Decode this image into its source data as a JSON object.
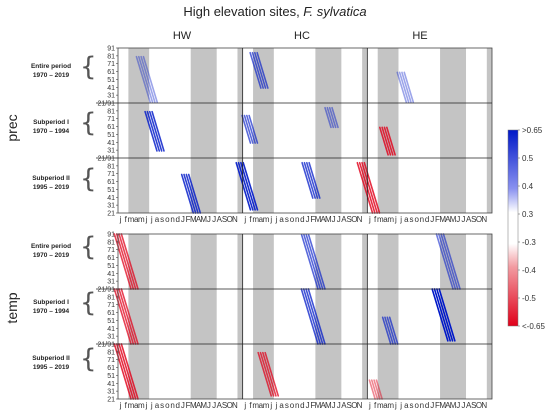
{
  "chart_data": {
    "type": "heatmap",
    "title_main": "High elevation sites, ",
    "title_species": "F. sylvatica",
    "groups": [
      "HW",
      "HC",
      "HE"
    ],
    "variables": [
      "prec",
      "temp"
    ],
    "periods": [
      {
        "name": "Entire period",
        "years": "1970 – 2019"
      },
      {
        "name": "Subperiod I",
        "years": "1970 – 1994"
      },
      {
        "name": "Subperiod II",
        "years": "1995 – 2019"
      }
    ],
    "y_ticks": [
      "91",
      "81",
      "71",
      "61",
      "51",
      "41",
      "31",
      "21"
    ],
    "y_break_labels": [
      "21/91",
      "21/91"
    ],
    "month_axis": [
      "j",
      "f",
      "m",
      "a",
      "m",
      "j",
      "j",
      "a",
      "s",
      "o",
      "n",
      "d",
      "J",
      "F",
      "M",
      "A",
      "M",
      "J",
      "J",
      "A",
      "S",
      "O",
      "N"
    ],
    "colorbar": {
      "labels": [
        ">0.65",
        "0.5",
        "0.4",
        "0.3",
        "-0.3",
        "-0.4",
        "-0.5",
        "<-0.65"
      ],
      "values": [
        0.65,
        0.5,
        0.4,
        0.3,
        -0.3,
        -0.4,
        -0.5,
        -0.65
      ],
      "positive_color": "#0018c8",
      "negative_color": "#e0001a"
    },
    "shading_color": "#c4c4c4",
    "shaded_months_per_group": [
      {
        "from_month": 2,
        "to_month": 5
      },
      {
        "from_month": 14,
        "to_month": 18
      },
      {
        "from_month": 23,
        "to_month": 23
      }
    ],
    "features": [
      {
        "var": 0,
        "period": 0,
        "group": 0,
        "month": 6.2,
        "window_start": 22,
        "window_end": 80,
        "corr": 0.3
      },
      {
        "var": 0,
        "period": 0,
        "group": 1,
        "month": 3.5,
        "window_start": 40,
        "window_end": 85,
        "corr": 0.45
      },
      {
        "var": 0,
        "period": 0,
        "group": 2,
        "month": 7.5,
        "window_start": 22,
        "window_end": 60,
        "corr": 0.3
      },
      {
        "var": 0,
        "period": 1,
        "group": 0,
        "month": 7.5,
        "window_start": 30,
        "window_end": 80,
        "corr": 0.55
      },
      {
        "var": 0,
        "period": 1,
        "group": 1,
        "month": 1.5,
        "window_start": 40,
        "window_end": 75,
        "corr": 0.45
      },
      {
        "var": 0,
        "period": 1,
        "group": 1,
        "month": 17.0,
        "window_start": 60,
        "window_end": 85,
        "corr": 0.35
      },
      {
        "var": 0,
        "period": 1,
        "group": 2,
        "month": 4.0,
        "window_start": 25,
        "window_end": 60,
        "corr": -0.55
      },
      {
        "var": 0,
        "period": 2,
        "group": 0,
        "month": 14.5,
        "window_start": 21,
        "window_end": 70,
        "corr": 0.55
      },
      {
        "var": 0,
        "period": 2,
        "group": 1,
        "month": 1.5,
        "window_start": 25,
        "window_end": 85,
        "corr": 0.6
      },
      {
        "var": 0,
        "period": 2,
        "group": 1,
        "month": 13.5,
        "window_start": 40,
        "window_end": 85,
        "corr": 0.5
      },
      {
        "var": 0,
        "period": 2,
        "group": 2,
        "month": 1.0,
        "window_start": 21,
        "window_end": 85,
        "corr": -0.55
      },
      {
        "var": 1,
        "period": 0,
        "group": 0,
        "month": 2.5,
        "window_start": 21,
        "window_end": 91,
        "corr": -0.5
      },
      {
        "var": 1,
        "period": 0,
        "group": 1,
        "month": 14.5,
        "window_start": 21,
        "window_end": 90,
        "corr": 0.45
      },
      {
        "var": 1,
        "period": 0,
        "group": 2,
        "month": 16.5,
        "window_start": 21,
        "window_end": 91,
        "corr": 0.4
      },
      {
        "var": 1,
        "period": 1,
        "group": 0,
        "month": 2.5,
        "window_start": 21,
        "window_end": 91,
        "corr": -0.5
      },
      {
        "var": 1,
        "period": 1,
        "group": 1,
        "month": 14.5,
        "window_start": 21,
        "window_end": 91,
        "corr": 0.5
      },
      {
        "var": 1,
        "period": 1,
        "group": 2,
        "month": 15.5,
        "window_start": 25,
        "window_end": 91,
        "corr": 0.65
      },
      {
        "var": 1,
        "period": 1,
        "group": 2,
        "month": 4.5,
        "window_start": 21,
        "window_end": 55,
        "corr": 0.45
      },
      {
        "var": 1,
        "period": 2,
        "group": 0,
        "month": 2.5,
        "window_start": 21,
        "window_end": 91,
        "corr": -0.55
      },
      {
        "var": 1,
        "period": 2,
        "group": 1,
        "month": 5.5,
        "window_start": 25,
        "window_end": 80,
        "corr": -0.5
      },
      {
        "var": 1,
        "period": 2,
        "group": 2,
        "month": 1.5,
        "window_start": 21,
        "window_end": 45,
        "corr": -0.35
      }
    ]
  }
}
